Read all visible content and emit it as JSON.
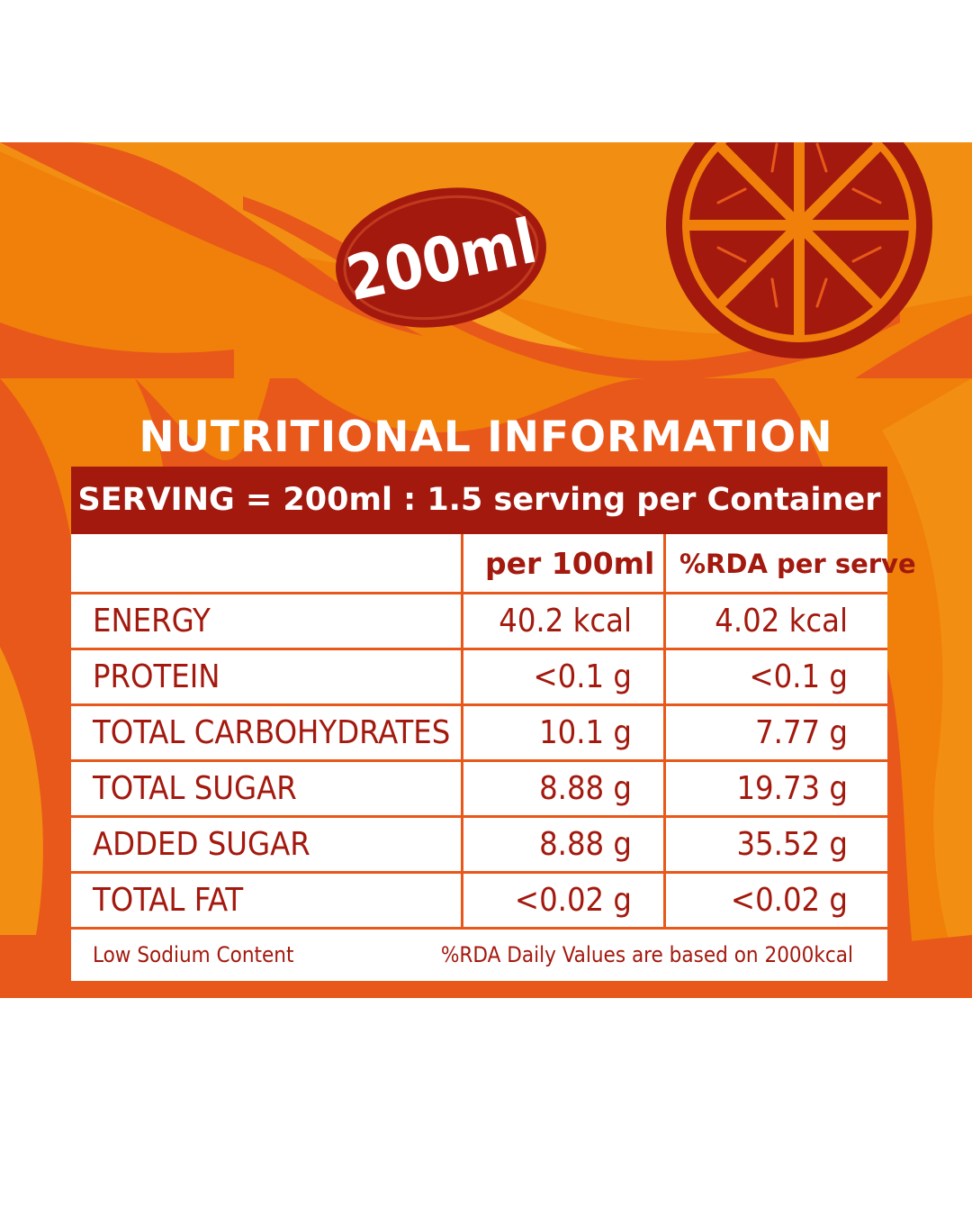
{
  "badge": {
    "label": "200ml"
  },
  "title": "NUTRITIONAL INFORMATION",
  "serving": "SERVING = 200ml : 1.5 serving per Container",
  "columns": {
    "per100": "per 100ml",
    "rda": "%RDA per serve"
  },
  "rows": [
    {
      "name": "ENERGY",
      "per100": "40.2 kcal",
      "rda": "4.02 kcal"
    },
    {
      "name": "PROTEIN",
      "per100": "<0.1 g",
      "rda": "<0.1 g"
    },
    {
      "name": "TOTAL CARBOHYDRATES",
      "per100": "10.1 g",
      "rda": "7.77 g"
    },
    {
      "name": "TOTAL SUGAR",
      "per100": "8.88 g",
      "rda": "19.73 g"
    },
    {
      "name": "ADDED SUGAR",
      "per100": "8.88 g",
      "rda": "35.52 g"
    },
    {
      "name": "TOTAL FAT",
      "per100": "<0.02 g",
      "rda": "<0.02 g"
    }
  ],
  "footer": {
    "left": "Low Sodium Content",
    "right": "%RDA Daily Values are based on 2000kcal"
  },
  "colors": {
    "orange": "#f0800a",
    "orange_dark": "#e8581a",
    "red": "#a3190e",
    "white": "#ffffff"
  },
  "icons": [
    "orange-slice-icon",
    "badge-blob-icon"
  ]
}
